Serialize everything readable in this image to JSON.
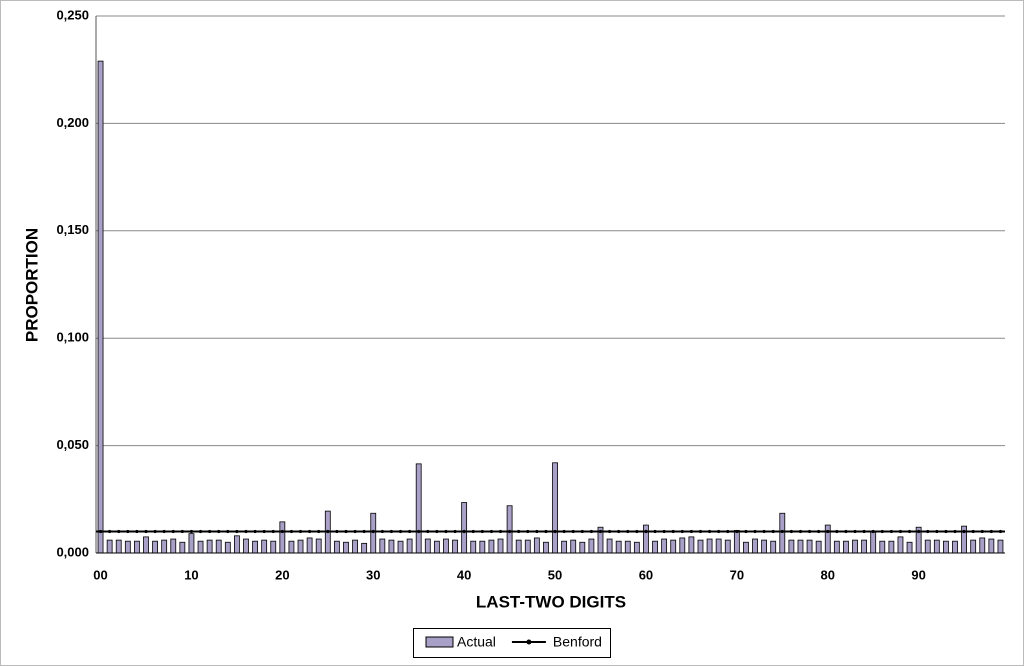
{
  "chart_data": {
    "type": "bar",
    "x_label": "LAST-TWO DIGITS",
    "y_label": "PROPORTION",
    "categories": [
      "00",
      null,
      null,
      null,
      null,
      null,
      null,
      null,
      null,
      null,
      "10",
      null,
      null,
      null,
      null,
      null,
      null,
      null,
      null,
      null,
      "20",
      null,
      null,
      null,
      null,
      null,
      null,
      null,
      null,
      null,
      "30",
      null,
      null,
      null,
      null,
      null,
      null,
      null,
      null,
      null,
      "40",
      null,
      null,
      null,
      null,
      null,
      null,
      null,
      null,
      null,
      "50",
      null,
      null,
      null,
      null,
      null,
      null,
      null,
      null,
      null,
      "60",
      null,
      null,
      null,
      null,
      null,
      null,
      null,
      null,
      null,
      "70",
      null,
      null,
      null,
      null,
      null,
      null,
      null,
      null,
      null,
      "80",
      null,
      null,
      null,
      null,
      null,
      null,
      null,
      null,
      null,
      "90",
      null,
      null,
      null,
      null,
      null,
      null,
      null,
      null,
      null
    ],
    "series": [
      {
        "name": "Actual",
        "type": "bar",
        "color": "#a9a0c8",
        "values": [
          0.229,
          0.006,
          0.006,
          0.0055,
          0.0055,
          0.0075,
          0.0055,
          0.006,
          0.0065,
          0.005,
          0.009,
          0.0055,
          0.006,
          0.006,
          0.005,
          0.008,
          0.0065,
          0.0055,
          0.006,
          0.0055,
          0.0145,
          0.0055,
          0.006,
          0.007,
          0.0065,
          0.0195,
          0.0055,
          0.005,
          0.006,
          0.0045,
          0.0185,
          0.0065,
          0.006,
          0.0055,
          0.0065,
          0.0415,
          0.0065,
          0.0055,
          0.0065,
          0.006,
          0.0235,
          0.0055,
          0.0055,
          0.006,
          0.0065,
          0.022,
          0.006,
          0.006,
          0.007,
          0.005,
          0.042,
          0.0055,
          0.006,
          0.005,
          0.0065,
          0.012,
          0.0065,
          0.0055,
          0.0055,
          0.005,
          0.013,
          0.0055,
          0.0065,
          0.006,
          0.007,
          0.0075,
          0.006,
          0.0065,
          0.0065,
          0.006,
          0.0105,
          0.005,
          0.0065,
          0.006,
          0.0055,
          0.0185,
          0.006,
          0.006,
          0.006,
          0.0055,
          0.013,
          0.0055,
          0.0055,
          0.006,
          0.006,
          0.01,
          0.0055,
          0.0055,
          0.0075,
          0.005,
          0.012,
          0.006,
          0.006,
          0.0055,
          0.0055,
          0.0125,
          0.006,
          0.007,
          0.0065,
          0.006
        ]
      },
      {
        "name": "Benford",
        "type": "line",
        "color": "#000000",
        "values": [
          0.01,
          0.01,
          0.01,
          0.01,
          0.01,
          0.01,
          0.01,
          0.01,
          0.01,
          0.01,
          0.01,
          0.01,
          0.01,
          0.01,
          0.01,
          0.01,
          0.01,
          0.01,
          0.01,
          0.01,
          0.01,
          0.01,
          0.01,
          0.01,
          0.01,
          0.01,
          0.01,
          0.01,
          0.01,
          0.01,
          0.01,
          0.01,
          0.01,
          0.01,
          0.01,
          0.01,
          0.01,
          0.01,
          0.01,
          0.01,
          0.01,
          0.01,
          0.01,
          0.01,
          0.01,
          0.01,
          0.01,
          0.01,
          0.01,
          0.01,
          0.01,
          0.01,
          0.01,
          0.01,
          0.01,
          0.01,
          0.01,
          0.01,
          0.01,
          0.01,
          0.01,
          0.01,
          0.01,
          0.01,
          0.01,
          0.01,
          0.01,
          0.01,
          0.01,
          0.01,
          0.01,
          0.01,
          0.01,
          0.01,
          0.01,
          0.01,
          0.01,
          0.01,
          0.01,
          0.01,
          0.01,
          0.01,
          0.01,
          0.01,
          0.01,
          0.01,
          0.01,
          0.01,
          0.01,
          0.01,
          0.01,
          0.01,
          0.01,
          0.01,
          0.01,
          0.01,
          0.01,
          0.01,
          0.01,
          0.01
        ]
      }
    ],
    "ylim": [
      0,
      0.25
    ],
    "yticks": [
      {
        "value": 0,
        "label": "0,000"
      },
      {
        "value": 0.05,
        "label": "0,050"
      },
      {
        "value": 0.1,
        "label": "0,100"
      },
      {
        "value": 0.15,
        "label": "0,150"
      },
      {
        "value": 0.2,
        "label": "0,200"
      },
      {
        "value": 0.25,
        "label": "0,250"
      }
    ],
    "grid": true,
    "legend": "bottom"
  }
}
